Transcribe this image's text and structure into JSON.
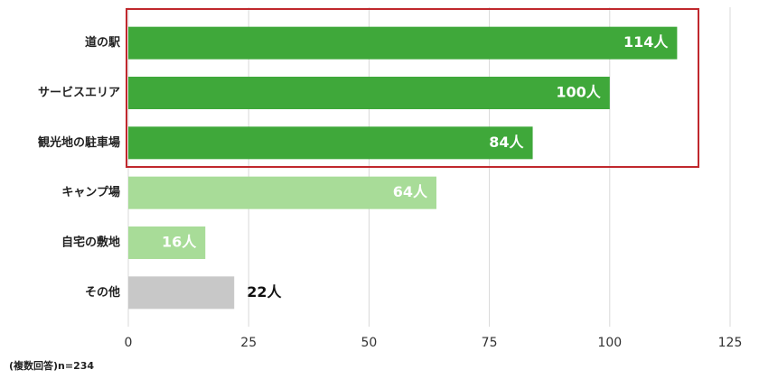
{
  "chart_data": {
    "type": "barh",
    "categories": [
      "道の駅",
      "サービスエリア",
      "観光地の駐車場",
      "キャンプ場",
      "自宅の敷地",
      "その他"
    ],
    "values": [
      114,
      100,
      84,
      64,
      16,
      22
    ],
    "value_labels": [
      "114人",
      "100人",
      "84人",
      "64人",
      "16人",
      "22人"
    ],
    "colors": [
      "#3fa83a",
      "#3fa83a",
      "#3fa83a",
      "#a8dc98",
      "#a8dc98",
      "#c8c8c8"
    ],
    "value_label_positions": [
      "inside",
      "inside",
      "inside",
      "inside",
      "inside",
      "outside"
    ],
    "xlim": [
      0,
      125
    ],
    "xticks": [
      0,
      25,
      50,
      75,
      100,
      125
    ],
    "grid": true,
    "note": "(複数回答)n=234"
  }
}
